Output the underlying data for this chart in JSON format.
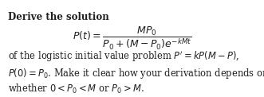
{
  "title_line": "Derive the solution",
  "formula": "$P(t) = \\dfrac{MP_0}{P_0 + (M - P_0)e^{-kMt}}$",
  "line1": "of the logistic initial value problem $P^{\\prime} = kP(M - P)$,",
  "line2": "$P(0) = P_0$. Make it clear how your derivation depends on",
  "line3": "whether $0 < P_0 < M$ or $P_0 > M$.",
  "bg_color": "#ffffff",
  "text_color": "#231f20",
  "font_size": 8.5,
  "formula_font_size": 9.0,
  "body_font_size": 8.3
}
